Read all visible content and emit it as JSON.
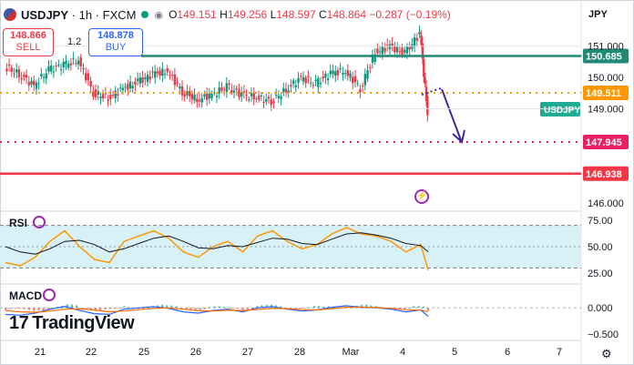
{
  "header": {
    "symbol": "USDJPY",
    "interval": "1h",
    "source": "FXCM",
    "ohlc": {
      "o_label": "O",
      "o": "149.151",
      "h_label": "H",
      "h": "149.256",
      "l_label": "L",
      "l": "148.597",
      "c_label": "C",
      "c": "148.864",
      "change": "−0.287 (−0.19%)"
    },
    "sell_price": "148.866",
    "sell_label": "SELL",
    "buy_price": "148.878",
    "buy_label": "BUY",
    "spread": "1.2"
  },
  "currency": "JPY",
  "watermark": "TradingView",
  "colors": {
    "up": "#089981",
    "down": "#f23645",
    "resistance": "#1f8b74",
    "orange": "#ff9800",
    "support_dotted": "#e91e63",
    "support_solid": "#f23645",
    "arrow": "#3c2a9c",
    "rsi": "#ff9800",
    "rsi_band": "#d8f1f7"
  },
  "chart_data": [
    {
      "type": "line",
      "title": "USDJPY · 1h · FXCM",
      "x_ticks": [
        "21",
        "22",
        "25",
        "26",
        "27",
        "28",
        "Mar",
        "4",
        "5",
        "6",
        "7"
      ],
      "x": [
        0,
        4,
        8,
        12,
        16,
        20,
        24,
        28,
        32,
        36,
        40,
        44,
        48,
        52,
        56,
        60,
        64,
        68,
        72,
        76,
        80,
        84,
        88,
        92,
        96,
        100,
        104,
        108,
        112,
        114
      ],
      "close": [
        150.35,
        150.1,
        149.75,
        150.25,
        150.4,
        150.55,
        149.5,
        149.35,
        149.65,
        149.85,
        150.1,
        150.2,
        149.55,
        149.3,
        149.45,
        149.7,
        149.45,
        149.35,
        149.25,
        149.6,
        150.0,
        149.8,
        150.15,
        150.2,
        149.65,
        150.8,
        151.0,
        150.75,
        151.4,
        148.86
      ],
      "y_ticks": [
        "151.000",
        "150.000",
        "149.000",
        "146.000"
      ],
      "ylim": [
        145.8,
        151.6
      ],
      "levels": [
        {
          "label": "150.685",
          "value": 150.685,
          "style": "resistance"
        },
        {
          "label": "149.511",
          "value": 149.511,
          "style": "dotted-orange"
        },
        {
          "label": "147.945",
          "value": 147.945,
          "style": "dotted-support"
        },
        {
          "label": "146.938",
          "value": 146.938,
          "style": "solid-support"
        }
      ],
      "price_tag": "USDJPY"
    },
    {
      "type": "line",
      "title": "RSI",
      "series": [
        {
          "name": "RSI",
          "values": [
            35,
            32,
            40,
            55,
            65,
            50,
            38,
            35,
            55,
            60,
            65,
            58,
            45,
            40,
            50,
            55,
            45,
            60,
            65,
            55,
            48,
            52,
            62,
            68,
            62,
            60,
            55,
            45,
            52,
            28
          ]
        },
        {
          "name": "RSI-MA",
          "values": [
            50,
            45,
            43,
            48,
            55,
            56,
            52,
            45,
            48,
            53,
            58,
            60,
            55,
            49,
            48,
            51,
            50,
            54,
            58,
            57,
            53,
            52,
            57,
            62,
            63,
            61,
            58,
            53,
            51,
            45
          ]
        }
      ],
      "y_ticks": [
        "75.00",
        "50.00",
        "25.00"
      ],
      "ylim": [
        20,
        80
      ]
    },
    {
      "type": "bar",
      "title": "MACD",
      "y_ticks": [
        "0.000",
        "−0.500"
      ],
      "ylim": [
        -0.55,
        0.35
      ]
    }
  ]
}
